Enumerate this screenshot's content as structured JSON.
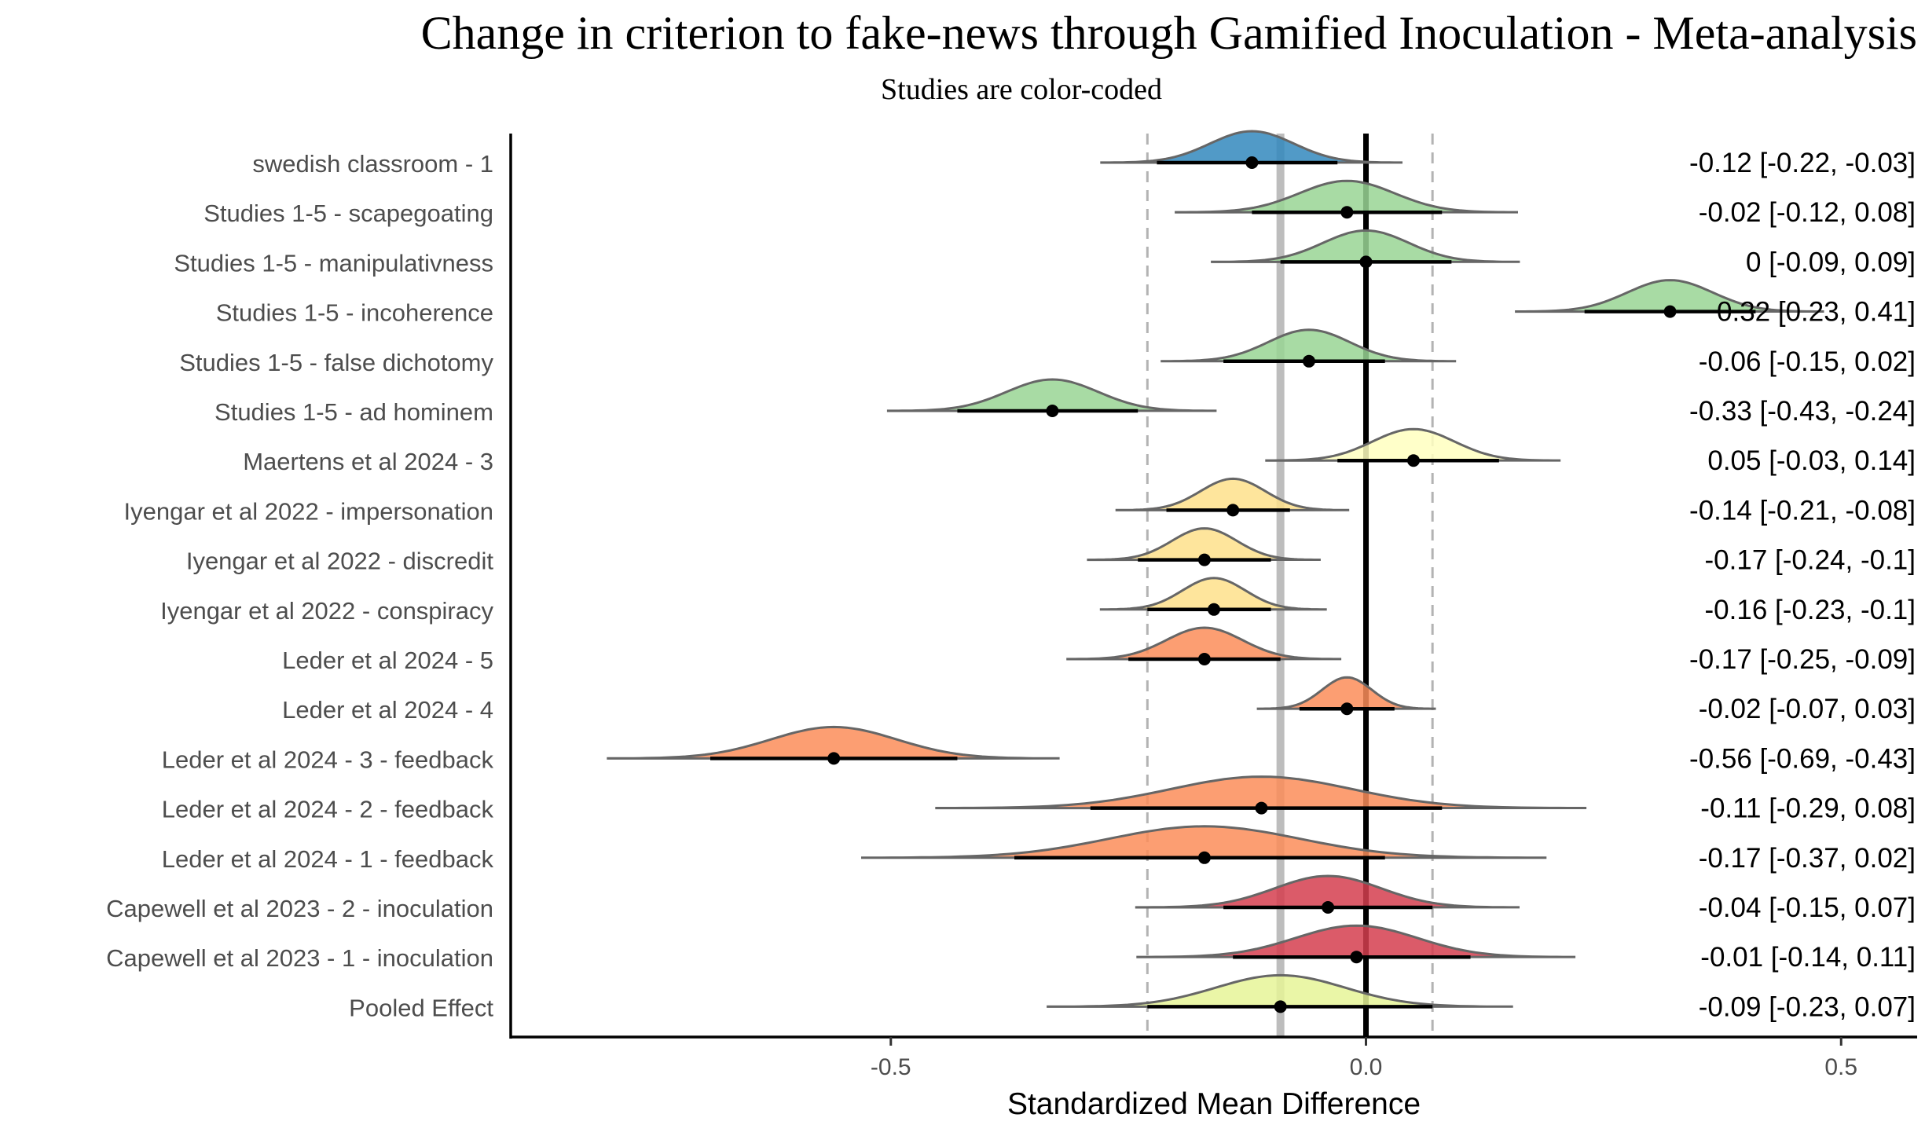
{
  "chart_data": {
    "type": "forest",
    "title": "Change in criterion to fake-news through Gamified Inoculation - Meta-analysis",
    "subtitle": "Studies are color-coded",
    "xlabel": "Standardized Mean Difference",
    "xlim": [
      -0.9,
      0.58
    ],
    "xticks": [
      -0.5,
      0.0,
      0.5
    ],
    "xtick_labels": [
      "-0.5",
      "0.0",
      "0.5"
    ],
    "pooled_effect": -0.09,
    "prediction_interval": [
      -0.23,
      0.07
    ],
    "studies": [
      {
        "label": "swedish classroom - 1",
        "est": -0.12,
        "lo": -0.22,
        "hi": -0.03,
        "ci_text": "-0.12 [-0.22, -0.03]",
        "color": "#3288bd",
        "sd": 0.044
      },
      {
        "label": "Studies 1-5 - scapegoating",
        "est": -0.02,
        "lo": -0.12,
        "hi": 0.08,
        "ci_text": "-0.02 [-0.12, 0.08]",
        "color": "#99d594",
        "sd": 0.05
      },
      {
        "label": "Studies 1-5 - manipulativness",
        "est": 0,
        "lo": -0.09,
        "hi": 0.09,
        "ci_text": "0 [-0.09, 0.09]",
        "color": "#99d594",
        "sd": 0.045
      },
      {
        "label": "Studies 1-5 - incoherence",
        "est": 0.32,
        "lo": 0.23,
        "hi": 0.41,
        "ci_text": "0.32 [0.23, 0.41]",
        "color": "#99d594",
        "sd": 0.045
      },
      {
        "label": "Studies 1-5 - false dichotomy",
        "est": -0.06,
        "lo": -0.15,
        "hi": 0.02,
        "ci_text": "-0.06 [-0.15, 0.02]",
        "color": "#99d594",
        "sd": 0.043
      },
      {
        "label": "Studies 1-5 - ad hominem",
        "est": -0.33,
        "lo": -0.43,
        "hi": -0.24,
        "ci_text": "-0.33 [-0.43, -0.24]",
        "color": "#99d594",
        "sd": 0.048
      },
      {
        "label": "Maertens et al 2024 - 3",
        "est": 0.05,
        "lo": -0.03,
        "hi": 0.14,
        "ci_text": "0.05 [-0.03, 0.14]",
        "color": "#ffffbf",
        "sd": 0.043
      },
      {
        "label": "Iyengar et al 2022 - impersonation",
        "est": -0.14,
        "lo": -0.21,
        "hi": -0.08,
        "ci_text": "-0.14 [-0.21, -0.08]",
        "color": "#fee08b",
        "sd": 0.034
      },
      {
        "label": "Iyengar et al 2022 - discredit",
        "est": -0.17,
        "lo": -0.24,
        "hi": -0.1,
        "ci_text": "-0.17 [-0.24, -0.1]",
        "color": "#fee08b",
        "sd": 0.034
      },
      {
        "label": "Iyengar et al 2022 - conspiracy",
        "est": -0.16,
        "lo": -0.23,
        "hi": -0.1,
        "ci_text": "-0.16 [-0.23, -0.1]",
        "color": "#fee08b",
        "sd": 0.033
      },
      {
        "label": "Leder et al 2024 - 5",
        "est": -0.17,
        "lo": -0.25,
        "hi": -0.09,
        "ci_text": "-0.17 [-0.25, -0.09]",
        "color": "#fc8d59",
        "sd": 0.04
      },
      {
        "label": "Leder et al 2024 - 4",
        "est": -0.02,
        "lo": -0.07,
        "hi": 0.03,
        "ci_text": "-0.02 [-0.07, 0.03]",
        "color": "#fc8d59",
        "sd": 0.026
      },
      {
        "label": "Leder et al 2024 - 3 - feedback",
        "est": -0.56,
        "lo": -0.69,
        "hi": -0.43,
        "ci_text": "-0.56 [-0.69, -0.43]",
        "color": "#fc8d59",
        "sd": 0.066
      },
      {
        "label": "Leder et al 2024 - 2 - feedback",
        "est": -0.11,
        "lo": -0.29,
        "hi": 0.08,
        "ci_text": "-0.11 [-0.29, 0.08]",
        "color": "#fc8d59",
        "sd": 0.095
      },
      {
        "label": "Leder et al 2024 - 1 - feedback",
        "est": -0.17,
        "lo": -0.37,
        "hi": 0.02,
        "ci_text": "-0.17 [-0.37, 0.02]",
        "color": "#fc8d59",
        "sd": 0.1
      },
      {
        "label": "Capewell et al 2023 - 2 - inoculation",
        "est": -0.04,
        "lo": -0.15,
        "hi": 0.07,
        "ci_text": "-0.04 [-0.15, 0.07]",
        "color": "#d53e4f",
        "sd": 0.056
      },
      {
        "label": "Capewell et al 2023 - 1 - inoculation",
        "est": -0.01,
        "lo": -0.14,
        "hi": 0.11,
        "ci_text": "-0.01 [-0.14, 0.11]",
        "color": "#d53e4f",
        "sd": 0.064
      },
      {
        "label": "Pooled Effect",
        "est": -0.09,
        "lo": -0.23,
        "hi": 0.07,
        "ci_text": "-0.09 [-0.23, 0.07]",
        "color": "#e6f598",
        "sd": 0.068
      }
    ]
  }
}
